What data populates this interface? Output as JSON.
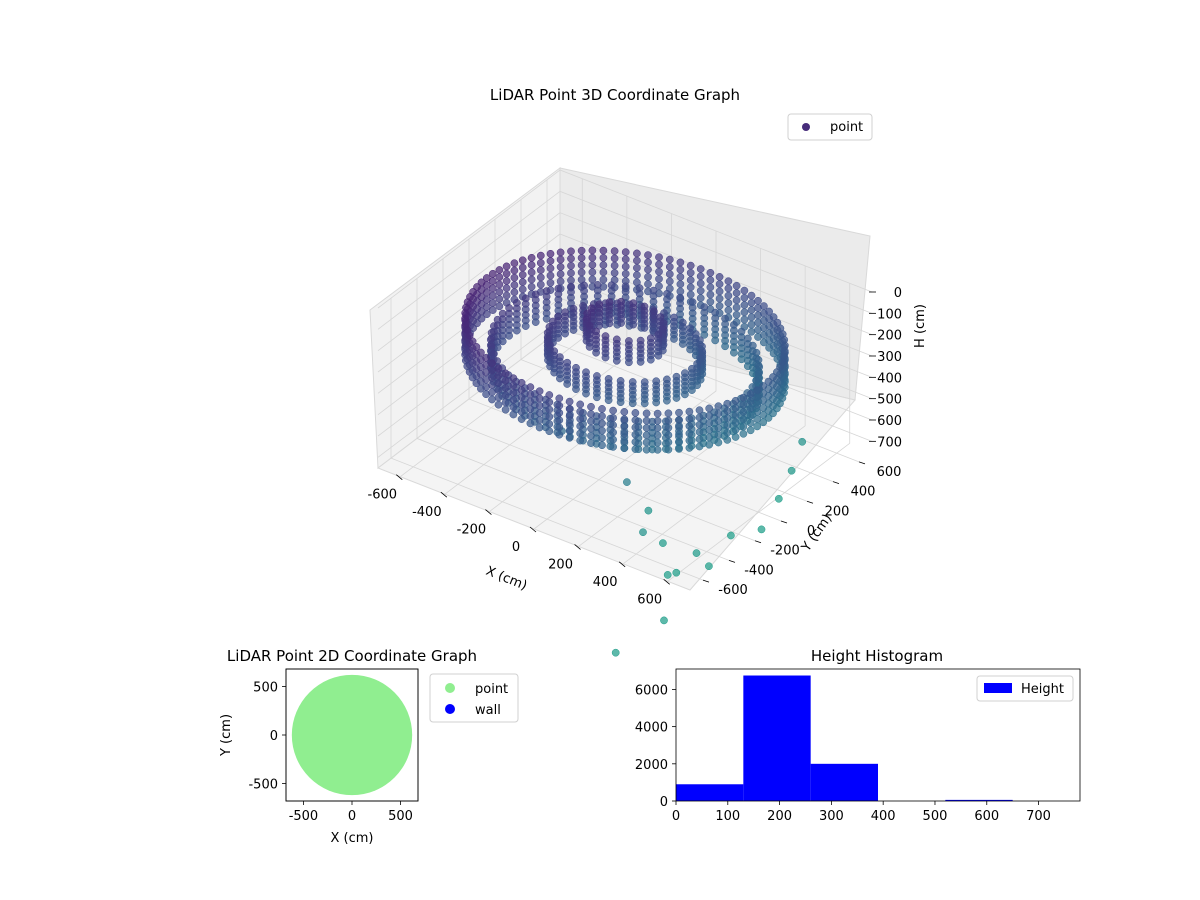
{
  "chart_data": [
    {
      "type": "scatter",
      "title": "LiDAR Point 3D Coordinate Graph",
      "xlabel": "X (cm)",
      "ylabel": "Y (cm)",
      "zlabel": "H (cm)",
      "xlim": [
        -700,
        700
      ],
      "ylim": [
        -700,
        700
      ],
      "zlim": [
        750,
        0
      ],
      "x_ticks": [
        -600,
        -400,
        -200,
        0,
        200,
        400,
        600
      ],
      "y_ticks": [
        -600,
        -400,
        -200,
        0,
        200,
        400,
        600
      ],
      "z_ticks": [
        0,
        100,
        200,
        300,
        400,
        500,
        600,
        700
      ],
      "grid": true,
      "legend": {
        "position": "top-right",
        "entries": [
          {
            "name": "point",
            "color": "#472d7b"
          }
        ]
      },
      "series": [
        {
          "name": "point",
          "colormap": "viridis",
          "rings": [
            {
              "radius": 620,
              "h_from": 150,
              "h_to": 320,
              "count": 90
            },
            {
              "radius": 520,
              "h_from": 250,
              "h_to": 380,
              "count": 60
            },
            {
              "radius": 300,
              "h_from": 200,
              "h_to": 300,
              "count": 40
            },
            {
              "radius": 150,
              "h_from": 100,
              "h_to": 200,
              "count": 20
            }
          ],
          "outliers": [
            {
              "x": 650,
              "y": -300,
              "h": 700
            },
            {
              "x": 680,
              "y": -520,
              "h": 730
            },
            {
              "x": 600,
              "y": -700,
              "h": 720
            },
            {
              "x": 700,
              "y": -650,
              "h": 600
            },
            {
              "x": 520,
              "y": -600,
              "h": 650
            },
            {
              "x": 460,
              "y": -650,
              "h": 600
            },
            {
              "x": 300,
              "y": -500,
              "h": 500
            },
            {
              "x": -50,
              "y": -400,
              "h": 450
            },
            {
              "x": 650,
              "y": -720,
              "h": 680
            },
            {
              "x": 700,
              "y": -900,
              "h": 800
            },
            {
              "x": 600,
              "y": -1100,
              "h": 900
            },
            {
              "x": 700,
              "y": -150,
              "h": 720
            },
            {
              "x": 690,
              "y": 0,
              "h": 650
            },
            {
              "x": 660,
              "y": 150,
              "h": 600
            },
            {
              "x": 620,
              "y": 300,
              "h": 550
            },
            {
              "x": 350,
              "y": -420,
              "h": 650
            }
          ]
        }
      ]
    },
    {
      "type": "scatter",
      "title": "LiDAR Point 2D Coordinate Graph",
      "xlabel": "X (cm)",
      "ylabel": "Y (cm)",
      "xlim": [
        -680,
        680
      ],
      "ylim": [
        -680,
        680
      ],
      "x_ticks": [
        -500,
        0,
        500
      ],
      "y_ticks": [
        500,
        0,
        -500
      ],
      "legend": {
        "position": "outside-right",
        "entries": [
          {
            "name": "point",
            "color": "#90ee90"
          },
          {
            "name": "wall",
            "color": "#0000ff"
          }
        ]
      },
      "series": [
        {
          "name": "point",
          "color": "#90ee90",
          "shape": "disc",
          "center": [
            0,
            0
          ],
          "radius": 620
        },
        {
          "name": "wall",
          "color": "#0000ff",
          "values": []
        }
      ]
    },
    {
      "type": "bar",
      "title": "Height Histogram",
      "xlabel": "",
      "ylabel": "",
      "xlim": [
        0,
        780
      ],
      "ylim": [
        0,
        7100
      ],
      "x_ticks": [
        0,
        100,
        200,
        300,
        400,
        500,
        600,
        700
      ],
      "y_ticks": [
        0,
        2000,
        4000,
        6000
      ],
      "legend": {
        "position": "top-right",
        "entries": [
          {
            "name": "Height",
            "color": "#0000ff"
          }
        ]
      },
      "bins": [
        {
          "from": 0,
          "to": 130,
          "count": 900
        },
        {
          "from": 130,
          "to": 260,
          "count": 6750
        },
        {
          "from": 260,
          "to": 390,
          "count": 2000
        },
        {
          "from": 390,
          "to": 520,
          "count": 0
        },
        {
          "from": 520,
          "to": 650,
          "count": 60
        },
        {
          "from": 650,
          "to": 780,
          "count": 0
        }
      ],
      "color": "#0000ff"
    }
  ]
}
